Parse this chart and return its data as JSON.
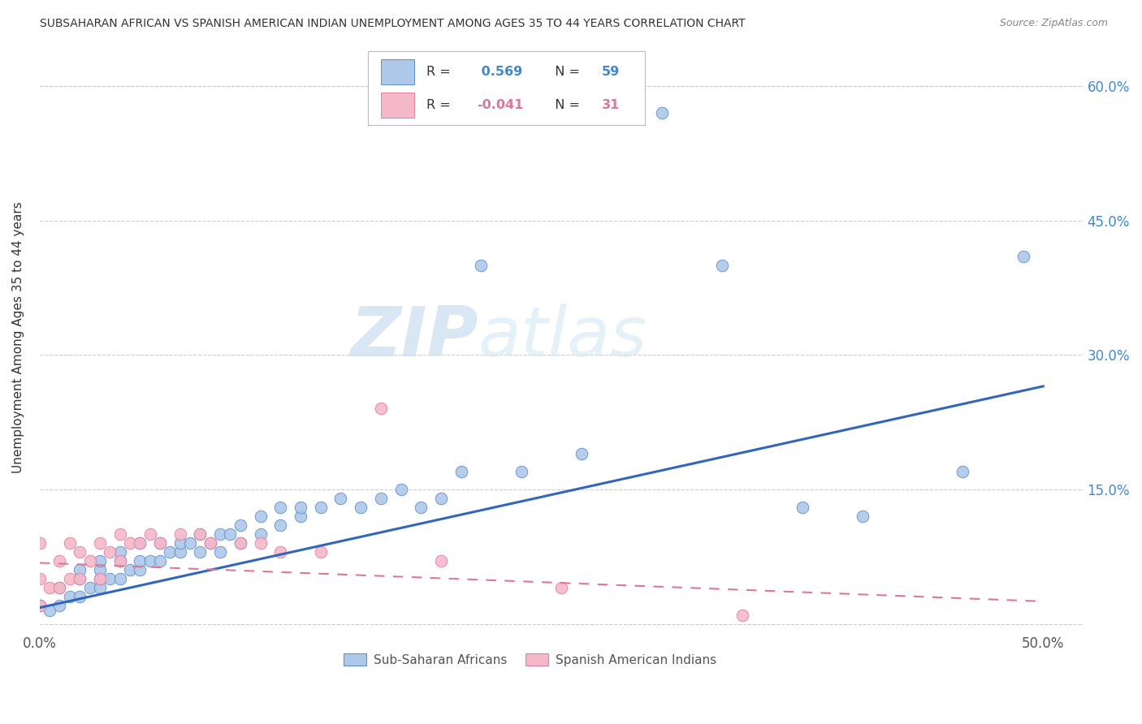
{
  "title": "SUBSAHARAN AFRICAN VS SPANISH AMERICAN INDIAN UNEMPLOYMENT AMONG AGES 35 TO 44 YEARS CORRELATION CHART",
  "source": "Source: ZipAtlas.com",
  "ylabel": "Unemployment Among Ages 35 to 44 years",
  "xlim": [
    0.0,
    0.52
  ],
  "ylim": [
    -0.01,
    0.65
  ],
  "xticks": [
    0.0,
    0.1,
    0.2,
    0.3,
    0.4,
    0.5
  ],
  "xticklabels": [
    "0.0%",
    "",
    "",
    "",
    "",
    "50.0%"
  ],
  "yticks": [
    0.0,
    0.15,
    0.3,
    0.45,
    0.6
  ],
  "yticklabels_right": [
    "",
    "15.0%",
    "30.0%",
    "45.0%",
    "60.0%"
  ],
  "r_blue": 0.569,
  "n_blue": 59,
  "r_pink": -0.041,
  "n_pink": 31,
  "blue_color": "#adc8e8",
  "pink_color": "#f5b8c8",
  "blue_edge_color": "#6090cc",
  "pink_edge_color": "#e080a0",
  "blue_line_color": "#3366bb",
  "pink_line_color": "#dd7799",
  "watermark": "ZIPatlas",
  "legend_labels": [
    "Sub-Saharan Africans",
    "Spanish American Indians"
  ],
  "blue_scatter_x": [
    0.0,
    0.005,
    0.01,
    0.01,
    0.015,
    0.02,
    0.02,
    0.02,
    0.025,
    0.03,
    0.03,
    0.03,
    0.03,
    0.035,
    0.04,
    0.04,
    0.04,
    0.045,
    0.05,
    0.05,
    0.05,
    0.055,
    0.06,
    0.06,
    0.065,
    0.07,
    0.07,
    0.075,
    0.08,
    0.08,
    0.085,
    0.09,
    0.09,
    0.095,
    0.1,
    0.1,
    0.11,
    0.11,
    0.12,
    0.12,
    0.13,
    0.13,
    0.14,
    0.15,
    0.16,
    0.17,
    0.18,
    0.19,
    0.2,
    0.21,
    0.22,
    0.24,
    0.27,
    0.31,
    0.34,
    0.38,
    0.41,
    0.46,
    0.49
  ],
  "blue_scatter_y": [
    0.02,
    0.015,
    0.02,
    0.04,
    0.03,
    0.03,
    0.05,
    0.06,
    0.04,
    0.04,
    0.05,
    0.06,
    0.07,
    0.05,
    0.05,
    0.07,
    0.08,
    0.06,
    0.06,
    0.07,
    0.09,
    0.07,
    0.07,
    0.09,
    0.08,
    0.08,
    0.09,
    0.09,
    0.08,
    0.1,
    0.09,
    0.08,
    0.1,
    0.1,
    0.09,
    0.11,
    0.1,
    0.12,
    0.11,
    0.13,
    0.12,
    0.13,
    0.13,
    0.14,
    0.13,
    0.14,
    0.15,
    0.13,
    0.14,
    0.17,
    0.4,
    0.17,
    0.19,
    0.57,
    0.4,
    0.13,
    0.12,
    0.17,
    0.41
  ],
  "pink_scatter_x": [
    0.0,
    0.0,
    0.0,
    0.005,
    0.01,
    0.01,
    0.015,
    0.015,
    0.02,
    0.02,
    0.025,
    0.03,
    0.03,
    0.035,
    0.04,
    0.04,
    0.045,
    0.05,
    0.055,
    0.06,
    0.07,
    0.08,
    0.085,
    0.1,
    0.11,
    0.12,
    0.14,
    0.17,
    0.2,
    0.26,
    0.35
  ],
  "pink_scatter_y": [
    0.02,
    0.05,
    0.09,
    0.04,
    0.04,
    0.07,
    0.05,
    0.09,
    0.05,
    0.08,
    0.07,
    0.05,
    0.09,
    0.08,
    0.07,
    0.1,
    0.09,
    0.09,
    0.1,
    0.09,
    0.1,
    0.1,
    0.09,
    0.09,
    0.09,
    0.08,
    0.08,
    0.24,
    0.07,
    0.04,
    0.01
  ],
  "blue_trend_x": [
    0.0,
    0.5
  ],
  "blue_trend_y_start": 0.018,
  "blue_trend_y_end": 0.265,
  "pink_trend_x": [
    0.0,
    0.5
  ],
  "pink_trend_y_start": 0.068,
  "pink_trend_y_end": 0.025
}
